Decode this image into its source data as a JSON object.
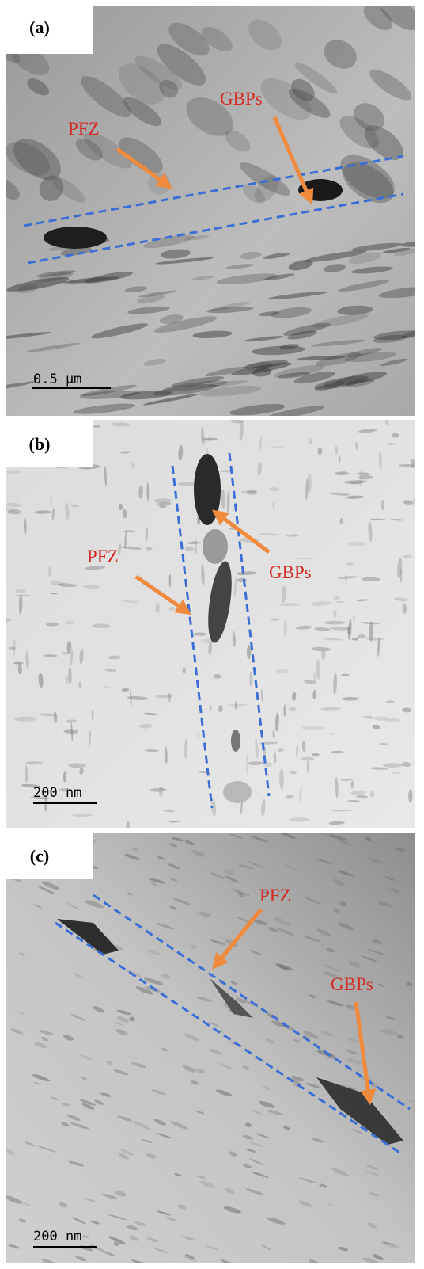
{
  "panels": [
    {
      "label": "(a)",
      "annotations": [
        "PFZ",
        "GBPs"
      ],
      "scale_bar": "0.5 μm"
    },
    {
      "label": "(b)",
      "annotations": [
        "PFZ",
        "GBPs"
      ],
      "scale_bar": "200 nm"
    },
    {
      "label": "(c)",
      "annotations": [
        "PFZ",
        "GBPs"
      ],
      "scale_bar": "200 nm"
    }
  ]
}
